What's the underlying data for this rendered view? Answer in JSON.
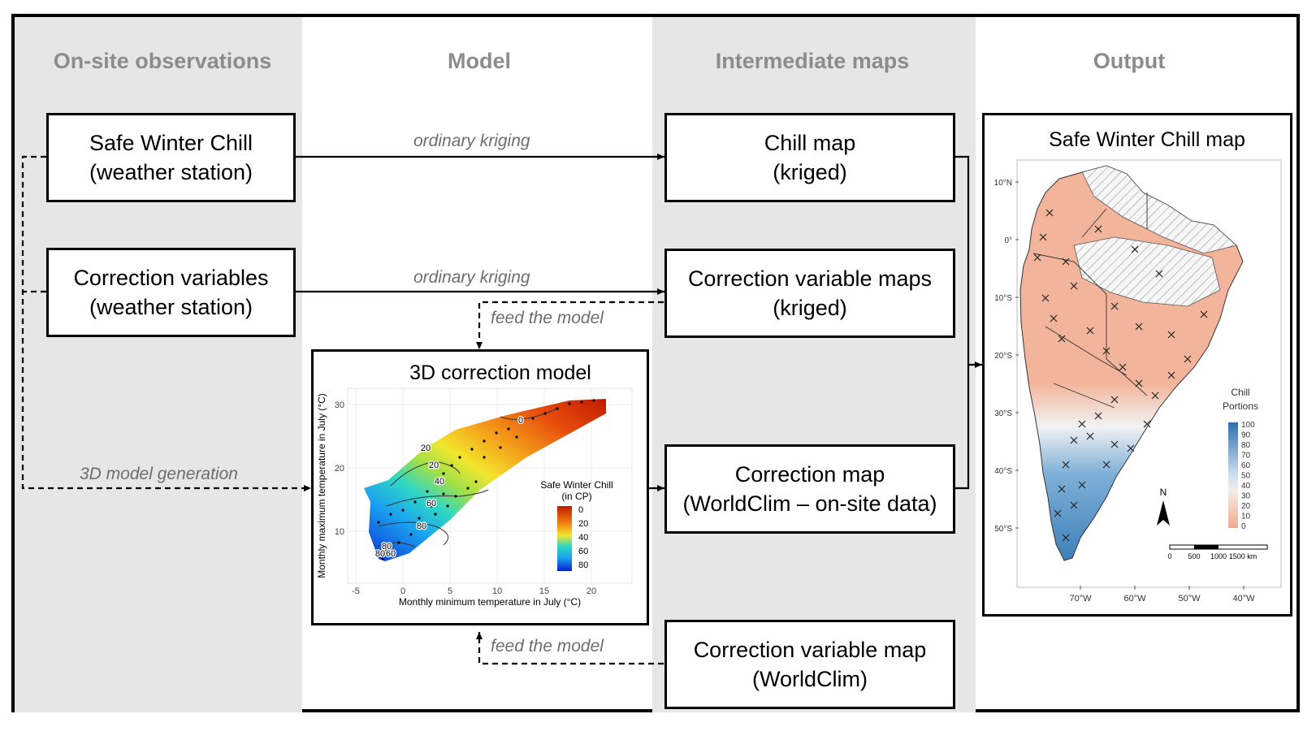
{
  "columns": {
    "observations": "On-site observations",
    "model": "Model",
    "intermediate": "Intermediate maps",
    "output": "Output"
  },
  "nodes": {
    "safe_winter_chill_station": [
      "Safe Winter Chill",
      "(weather station)"
    ],
    "correction_variables_station": [
      "Correction variables",
      "(weather station)"
    ],
    "chill_map_kriged": [
      "Chill map",
      "(kriged)"
    ],
    "correction_variable_maps_kriged": [
      "Correction variable maps",
      "(kriged)"
    ],
    "correction_map": [
      "Correction map",
      "(WorldClim – on-site data)"
    ],
    "correction_variable_map_worldclim": [
      "Correction variable map",
      "(WorldClim)"
    ],
    "model_3d_title": "3D correction model",
    "output_map_title": "Safe Winter Chill map"
  },
  "edges": {
    "ordinary_kriging_1": "ordinary kriging",
    "ordinary_kriging_2": "ordinary kriging",
    "feed_model_1": "feed the model",
    "feed_model_2": "feed the model",
    "model_generation": "3D model generation"
  },
  "model_plot": {
    "xlabel": "Monthly minimum temperature in July (°C)",
    "ylabel": "Monthly maximum temperature in July (°C)",
    "x_ticks": [
      "-5",
      "0",
      "5",
      "10",
      "15",
      "20"
    ],
    "y_ticks": [
      "10",
      "20",
      "30"
    ],
    "legend_title": [
      "Safe Winter Chill",
      "(in CP)"
    ],
    "legend_ticks": [
      "0",
      "20",
      "40",
      "60",
      "80"
    ],
    "contour_labels": [
      "0",
      "20",
      "20",
      "40",
      "60",
      "80",
      "80",
      "80",
      "60"
    ]
  },
  "output_map": {
    "lat_labels": [
      "10°N",
      "0°",
      "10°S",
      "20°S",
      "30°S",
      "40°S",
      "50°S"
    ],
    "lon_labels": [
      "70°W",
      "60°W",
      "50°W",
      "40°W"
    ],
    "legend_title": [
      "Chill",
      "Portions"
    ],
    "legend_ticks": [
      "100",
      "90",
      "80",
      "70",
      "60",
      "50",
      "40",
      "30",
      "20",
      "10",
      "0"
    ],
    "north": "N",
    "scale_ticks": [
      "0",
      "500",
      "1000",
      "1500 km"
    ]
  },
  "colors": {
    "column_gray": "#e6e6e6",
    "header_gray": "#8c8c8c",
    "edge_label_gray": "#6e6e6e",
    "chill_low": "#f2b49a",
    "chill_high": "#3f7fb8"
  }
}
